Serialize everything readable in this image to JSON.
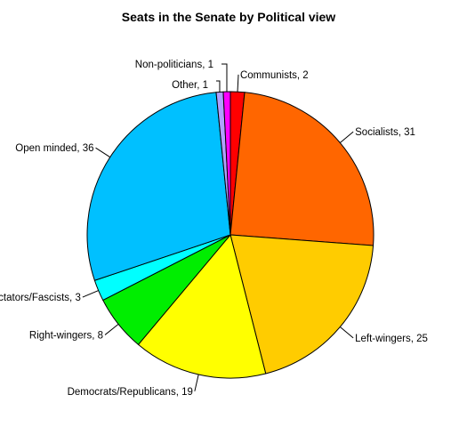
{
  "chart_data": {
    "type": "pie",
    "title": "Seats in the Senate by Political view",
    "slices": [
      {
        "label": "Communists",
        "value": 2,
        "color": "#ff0000"
      },
      {
        "label": "Socialists",
        "value": 31,
        "color": "#ff6600"
      },
      {
        "label": "Left-wingers",
        "value": 25,
        "color": "#ffcc00"
      },
      {
        "label": "Democrats/Republicans",
        "value": 19,
        "color": "#ffff00"
      },
      {
        "label": "Right-wingers",
        "value": 8,
        "color": "#00ee00"
      },
      {
        "label": "Dictators/Fascists",
        "value": 3,
        "color": "#00ffff"
      },
      {
        "label": "Open minded",
        "value": 36,
        "color": "#00c0ff"
      },
      {
        "label": "Other",
        "value": 1,
        "color": "#b0a0ff"
      },
      {
        "label": "Non-politicians",
        "value": 1,
        "color": "#ff00ff"
      }
    ],
    "direction": "clockwise",
    "start_angle": "top"
  }
}
